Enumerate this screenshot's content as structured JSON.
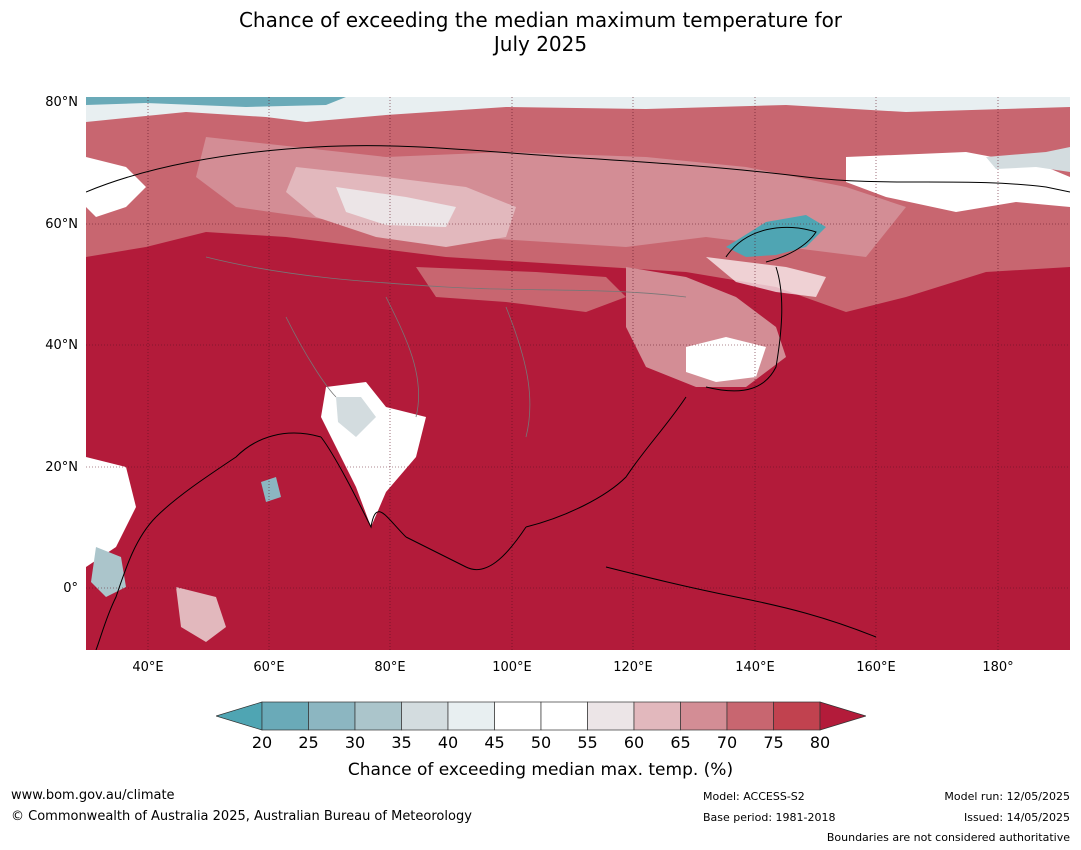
{
  "title_line1": "Chance of exceeding the median maximum temperature for",
  "title_line2": "July 2025",
  "map": {
    "lat_labels": [
      "80°N",
      "60°N",
      "40°N",
      "20°N",
      "0°"
    ],
    "lon_labels": [
      "40°E",
      "60°E",
      "80°E",
      "100°E",
      "120°E",
      "140°E",
      "160°E",
      "180°"
    ],
    "colors": {
      "above_80": "#b31b3a",
      "c75": "#c1424f",
      "c70": "#c86670",
      "c65": "#d38d95",
      "c60": "#e2b8bd",
      "c55": "#ece5e7",
      "c50": "#ffffff",
      "c40": "#e8eff1",
      "c35": "#d3dcdf",
      "c30": "#abc5cb",
      "c25": "#8cb6c1",
      "below_20": "#4fa5b3",
      "ocean_background": "#b31b3a"
    }
  },
  "legend": {
    "ticks": [
      "20",
      "25",
      "30",
      "35",
      "40",
      "45",
      "50",
      "55",
      "60",
      "65",
      "70",
      "75",
      "80"
    ],
    "bin_colors": [
      "#4fa5b3",
      "#6aaab8",
      "#8cb6c1",
      "#abc5cb",
      "#d3dcdf",
      "#e8eff1",
      "#ffffff",
      "#ffffff",
      "#ece5e7",
      "#e2b8bd",
      "#d38d95",
      "#c86670",
      "#c1424f",
      "#b31b3a"
    ],
    "title": "Chance of exceeding median max. temp. (%)"
  },
  "footer": {
    "url": "www.bom.gov.au/climate",
    "copyright": "© Commonwealth of Australia 2025, Australian Bureau of Meteorology",
    "model": "Model: ACCESS-S2",
    "base_period": "Base period: 1981-2018",
    "model_run": "Model run: 12/05/2025",
    "issued": "Issued: 14/05/2025",
    "disclaimer": "Boundaries are not considered authoritative"
  }
}
